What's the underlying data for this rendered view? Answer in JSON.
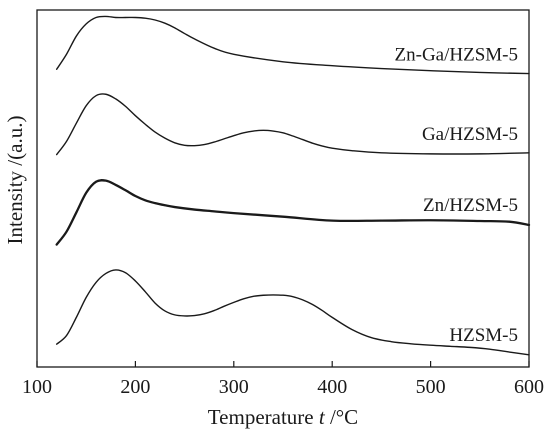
{
  "chart_data": {
    "type": "line",
    "title": "",
    "xlabel": {
      "prefix": "Temperature ",
      "var": "t",
      "unit": " /°C"
    },
    "ylabel": "Intensity /(a.u.)",
    "xlim": [
      100,
      600
    ],
    "ylim": [
      0,
      1
    ],
    "x_ticks": [
      100,
      200,
      300,
      400,
      500,
      600
    ],
    "x_tick_labels": [
      "100",
      "200",
      "300",
      "400",
      "500",
      "600"
    ],
    "y_ticks_shown": false,
    "grid": false,
    "legend": "none",
    "series_label_position": "right end of each curve",
    "series": [
      {
        "name": "Zn-Ga/HZSM-5",
        "x": [
          120,
          130,
          140,
          150,
          160,
          170,
          180,
          190,
          200,
          210,
          220,
          230,
          240,
          250,
          260,
          280,
          300,
          350,
          400,
          450,
          500,
          550,
          600
        ],
        "y": [
          0.834,
          0.876,
          0.927,
          0.961,
          0.979,
          0.982,
          0.979,
          0.979,
          0.979,
          0.977,
          0.972,
          0.963,
          0.95,
          0.934,
          0.919,
          0.893,
          0.876,
          0.855,
          0.844,
          0.836,
          0.83,
          0.825,
          0.822
        ]
      },
      {
        "name": "Ga/HZSM-5",
        "x": [
          120,
          130,
          140,
          150,
          160,
          170,
          180,
          190,
          200,
          210,
          220,
          230,
          240,
          250,
          260,
          270,
          280,
          290,
          300,
          310,
          320,
          330,
          340,
          350,
          360,
          370,
          380,
          390,
          400,
          420,
          450,
          500,
          550,
          600
        ],
        "y": [
          0.595,
          0.632,
          0.683,
          0.732,
          0.76,
          0.764,
          0.751,
          0.73,
          0.704,
          0.68,
          0.658,
          0.641,
          0.628,
          0.621,
          0.62,
          0.623,
          0.63,
          0.639,
          0.648,
          0.656,
          0.661,
          0.663,
          0.661,
          0.656,
          0.647,
          0.637,
          0.627,
          0.619,
          0.613,
          0.606,
          0.6,
          0.597,
          0.597,
          0.6
        ]
      },
      {
        "name": "Zn/HZSM-5",
        "x": [
          120,
          130,
          140,
          150,
          160,
          170,
          180,
          190,
          200,
          210,
          220,
          230,
          240,
          260,
          280,
          300,
          350,
          400,
          450,
          500,
          550,
          580,
          600
        ],
        "y": [
          0.343,
          0.379,
          0.433,
          0.488,
          0.519,
          0.522,
          0.51,
          0.495,
          0.479,
          0.467,
          0.459,
          0.453,
          0.448,
          0.441,
          0.436,
          0.431,
          0.421,
          0.41,
          0.41,
          0.411,
          0.409,
          0.407,
          0.398
        ]
      },
      {
        "name": "HZSM-5",
        "x": [
          120,
          130,
          140,
          150,
          160,
          170,
          180,
          190,
          200,
          210,
          220,
          230,
          240,
          250,
          260,
          270,
          280,
          290,
          300,
          310,
          320,
          330,
          340,
          350,
          360,
          370,
          380,
          390,
          400,
          420,
          440,
          460,
          480,
          500,
          520,
          540,
          560,
          580,
          600
        ],
        "y": [
          0.064,
          0.088,
          0.139,
          0.195,
          0.237,
          0.262,
          0.272,
          0.264,
          0.241,
          0.211,
          0.179,
          0.157,
          0.146,
          0.143,
          0.144,
          0.149,
          0.158,
          0.17,
          0.181,
          0.191,
          0.198,
          0.201,
          0.202,
          0.201,
          0.197,
          0.188,
          0.175,
          0.158,
          0.139,
          0.105,
          0.082,
          0.071,
          0.065,
          0.061,
          0.058,
          0.055,
          0.05,
          0.042,
          0.034
        ]
      }
    ]
  }
}
